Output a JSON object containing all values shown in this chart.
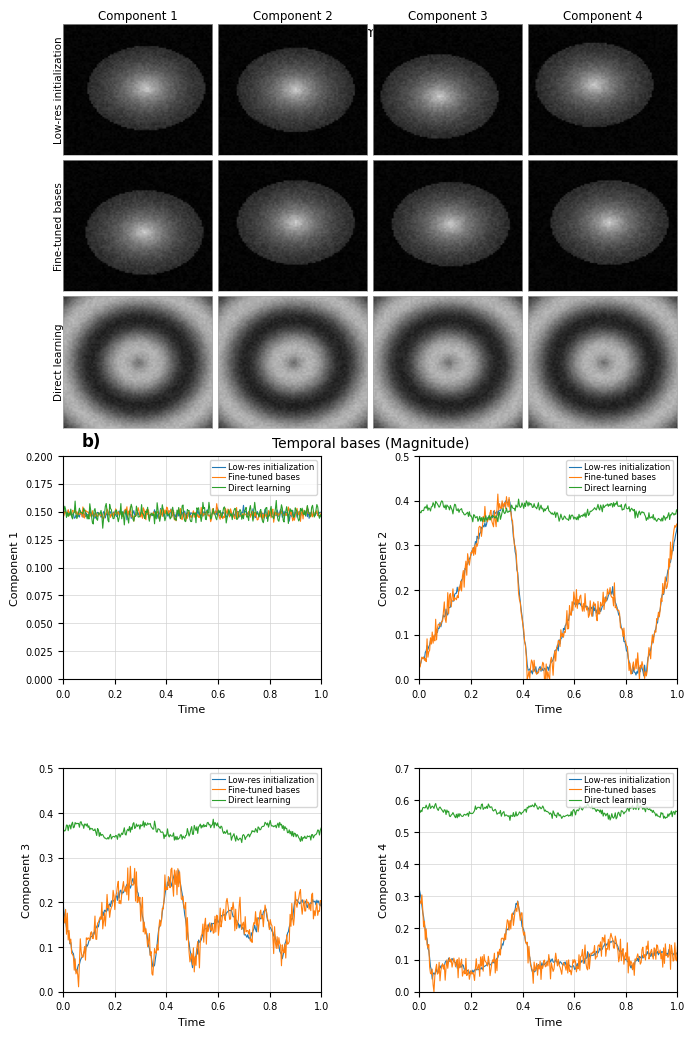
{
  "title_a": "Spatial bases (Normalized magnitude)",
  "title_b": "Temporal bases (Magnitude)",
  "row_labels": [
    "Low-res initialization",
    "Fine-tuned bases",
    "Direct learning"
  ],
  "col_labels": [
    "Component 1",
    "Component 2",
    "Component 3",
    "Component 4"
  ],
  "legend_labels": [
    "Low-res initialization",
    "Fine-tuned bases",
    "Direct learning"
  ],
  "line_colors": [
    "#1f77b4",
    "#ff7f0e",
    "#2ca02c"
  ],
  "comp1_ylim": [
    0.0,
    0.2
  ],
  "comp2_ylim": [
    0.0,
    0.5
  ],
  "comp3_ylim": [
    0.0,
    0.5
  ],
  "comp4_ylim": [
    0.0,
    0.7
  ],
  "comp1_yticks": [
    0.0,
    0.025,
    0.05,
    0.075,
    0.1,
    0.125,
    0.15,
    0.175,
    0.2
  ],
  "comp2_yticks": [
    0.0,
    0.1,
    0.2,
    0.3,
    0.4,
    0.5
  ],
  "comp3_yticks": [
    0.0,
    0.1,
    0.2,
    0.3,
    0.4,
    0.5
  ],
  "comp4_yticks": [
    0.0,
    0.1,
    0.2,
    0.3,
    0.4,
    0.5,
    0.6,
    0.7
  ],
  "xlabel": "Time",
  "ylabel_prefix": "Component ",
  "background_color": "#ffffff"
}
